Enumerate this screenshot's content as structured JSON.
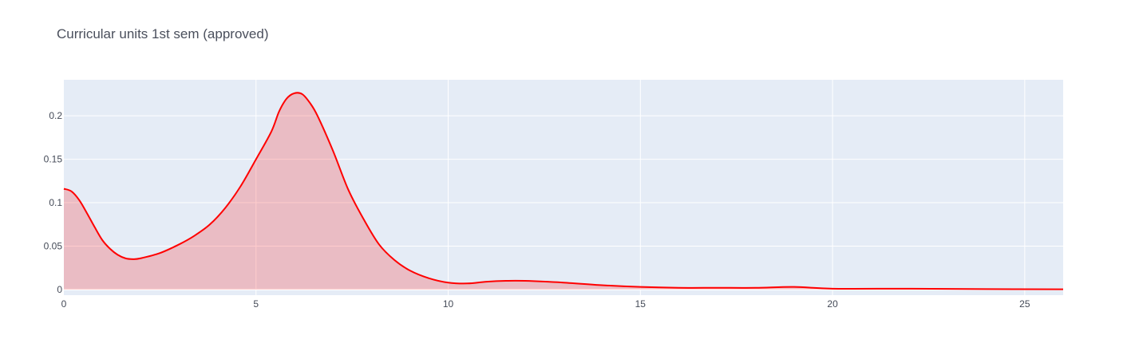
{
  "chart_data": {
    "type": "area",
    "title": "Curricular units 1st sem (approved)",
    "xlabel": "",
    "ylabel": "",
    "xlim": [
      0,
      26
    ],
    "ylim": [
      -0.0065,
      0.2415
    ],
    "xticks": [
      0,
      5,
      10,
      15,
      20,
      25
    ],
    "xtick_labels": [
      "0",
      "5",
      "10",
      "15",
      "20",
      "25"
    ],
    "yticks": [
      0,
      0.05,
      0.1,
      0.15,
      0.2
    ],
    "ytick_labels": [
      "0",
      "0.05",
      "0.1",
      "0.15",
      "0.2"
    ],
    "grid": true,
    "legend": "none",
    "colors": {
      "line": "#ff0000",
      "fill": "rgba(255,0,0,0.2)",
      "plot_bg": "#e5ecf6",
      "grid": "#ffffff"
    },
    "series": [
      {
        "x": [
          0,
          0.2,
          0.4,
          0.6,
          0.8,
          1.0,
          1.2,
          1.4,
          1.6,
          1.8,
          2.0,
          2.5,
          3.0,
          3.4,
          3.8,
          4.2,
          4.6,
          5.0,
          5.4,
          5.6,
          5.8,
          6.0,
          6.2,
          6.4,
          6.6,
          7.0,
          7.4,
          7.8,
          8.2,
          8.6,
          9.0,
          9.5,
          10.0,
          10.5,
          11.0,
          11.5,
          12.0,
          13.0,
          14.0,
          15.0,
          16.0,
          17.0,
          18.0,
          19.0,
          20.0,
          22.0,
          24.0,
          26.0
        ],
        "y": [
          0.116,
          0.113,
          0.103,
          0.088,
          0.072,
          0.057,
          0.047,
          0.04,
          0.036,
          0.035,
          0.036,
          0.042,
          0.052,
          0.062,
          0.075,
          0.094,
          0.119,
          0.15,
          0.182,
          0.205,
          0.22,
          0.226,
          0.225,
          0.215,
          0.2,
          0.16,
          0.115,
          0.081,
          0.052,
          0.034,
          0.022,
          0.013,
          0.008,
          0.007,
          0.009,
          0.01,
          0.01,
          0.008,
          0.005,
          0.003,
          0.002,
          0.002,
          0.002,
          0.003,
          0.001,
          0.001,
          0.0005,
          0.0003
        ]
      }
    ]
  }
}
